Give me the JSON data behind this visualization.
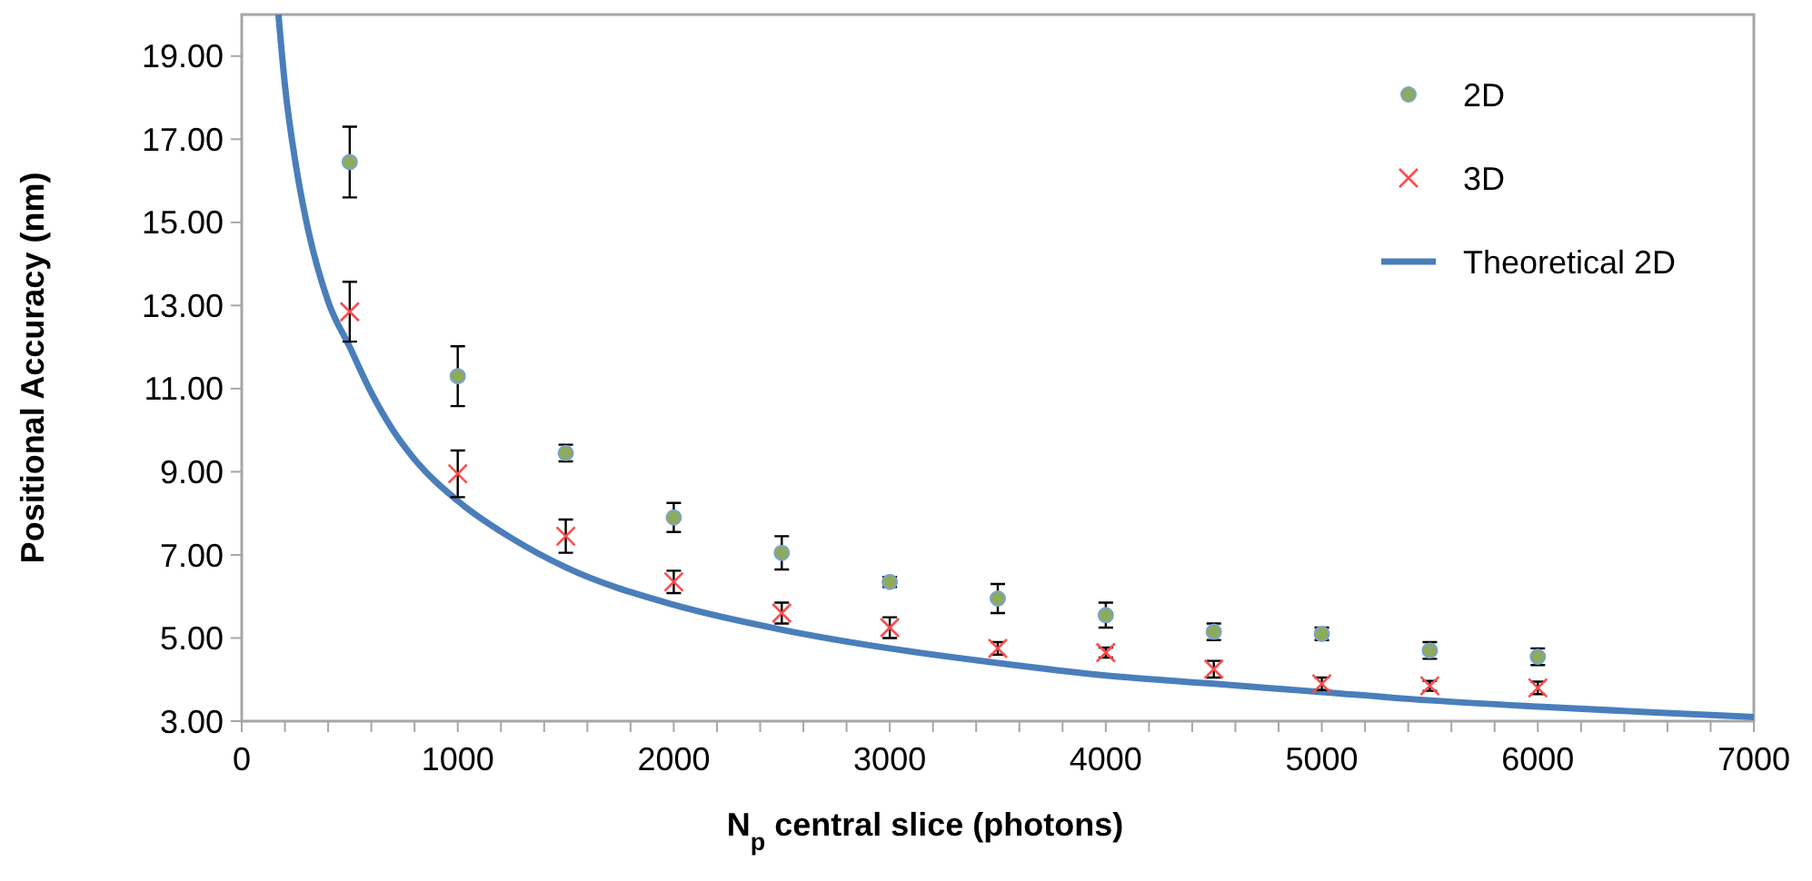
{
  "chart_data": {
    "type": "scatter",
    "xlabel": "N$_{p}$ central slice (photons)",
    "ylabel": "Positional Accuracy (nm)",
    "xlim": [
      0,
      7000
    ],
    "ylim": [
      3,
      20
    ],
    "xticks": [
      0,
      {
        "value": 200,
        "label": null
      },
      {
        "value": 400,
        "label": null
      },
      {
        "value": 600,
        "label": null
      },
      {
        "value": 800,
        "label": null
      },
      1000,
      {
        "value": 1200,
        "label": null
      },
      {
        "value": 1400,
        "label": null
      },
      {
        "value": 1600,
        "label": null
      },
      {
        "value": 1800,
        "label": null
      },
      2000,
      {
        "value": 2200,
        "label": null
      },
      {
        "value": 2400,
        "label": null
      },
      {
        "value": 2600,
        "label": null
      },
      {
        "value": 2800,
        "label": null
      },
      3000,
      {
        "value": 3200,
        "label": null
      },
      {
        "value": 3400,
        "label": null
      },
      {
        "value": 3600,
        "label": null
      },
      {
        "value": 3800,
        "label": null
      },
      4000,
      {
        "value": 4200,
        "label": null
      },
      {
        "value": 4400,
        "label": null
      },
      {
        "value": 4600,
        "label": null
      },
      {
        "value": 4800,
        "label": null
      },
      5000,
      {
        "value": 5200,
        "label": null
      },
      {
        "value": 5400,
        "label": null
      },
      {
        "value": 5600,
        "label": null
      },
      {
        "value": 5800,
        "label": null
      },
      6000,
      {
        "value": 6200,
        "label": null
      },
      {
        "value": 6400,
        "label": null
      },
      {
        "value": 6600,
        "label": null
      },
      {
        "value": 6800,
        "label": null
      },
      7000
    ],
    "yticks": [
      {
        "value": 3,
        "label": "3.00"
      },
      {
        "value": 5,
        "label": "5.00"
      },
      {
        "value": 7,
        "label": "7.00"
      },
      {
        "value": 9,
        "label": "9.00"
      },
      {
        "value": 11,
        "label": "11.00"
      },
      {
        "value": 13,
        "label": "13.00"
      },
      {
        "value": 15,
        "label": "15.00"
      },
      {
        "value": 17,
        "label": "17.00"
      },
      {
        "value": 19,
        "label": "19.00"
      }
    ],
    "grid": false,
    "legend": "top right",
    "series": [
      {
        "name": "2D",
        "marker": "circle",
        "color": "#8eaa5c",
        "x": [
          500,
          1000,
          1500,
          2000,
          2500,
          3000,
          3500,
          4000,
          4500,
          5000,
          5500,
          6000
        ],
        "values": [
          16.45,
          11.3,
          9.45,
          7.9,
          7.05,
          6.35,
          5.95,
          5.55,
          5.15,
          5.1,
          4.7,
          4.55
        ],
        "errors": [
          0.85,
          0.72,
          0.2,
          0.35,
          0.4,
          0.12,
          0.35,
          0.3,
          0.2,
          0.15,
          0.2,
          0.2
        ]
      },
      {
        "name": "3D",
        "marker": "cross",
        "color": "#ff4b4b",
        "x": [
          500,
          1000,
          1500,
          2000,
          2500,
          3000,
          3500,
          4000,
          4500,
          5000,
          5500,
          6000
        ],
        "values": [
          12.85,
          8.95,
          7.45,
          6.35,
          5.6,
          5.25,
          4.75,
          4.65,
          4.25,
          3.9,
          3.85,
          3.8
        ],
        "errors": [
          0.72,
          0.56,
          0.4,
          0.27,
          0.25,
          0.25,
          0.15,
          0.12,
          0.2,
          0.15,
          0.12,
          0.15
        ]
      },
      {
        "name": "Theoretical 2D",
        "type": "line",
        "marker": "none",
        "color": "#4a7ebb",
        "x": [
          170,
          200,
          250,
          300,
          400,
          500,
          600,
          700,
          800,
          1000,
          1250,
          1500,
          2000,
          2500,
          3000,
          3500,
          4000,
          4500,
          5000,
          5500,
          6000,
          6500,
          7000
        ],
        "values": [
          20,
          18.3,
          16.4,
          15.0,
          13.1,
          12.0,
          10.9,
          10.0,
          9.3,
          8.3,
          7.4,
          6.7,
          5.8,
          5.2,
          4.75,
          4.4,
          4.1,
          3.9,
          3.7,
          3.5,
          3.35,
          3.22,
          3.1
        ]
      }
    ]
  }
}
